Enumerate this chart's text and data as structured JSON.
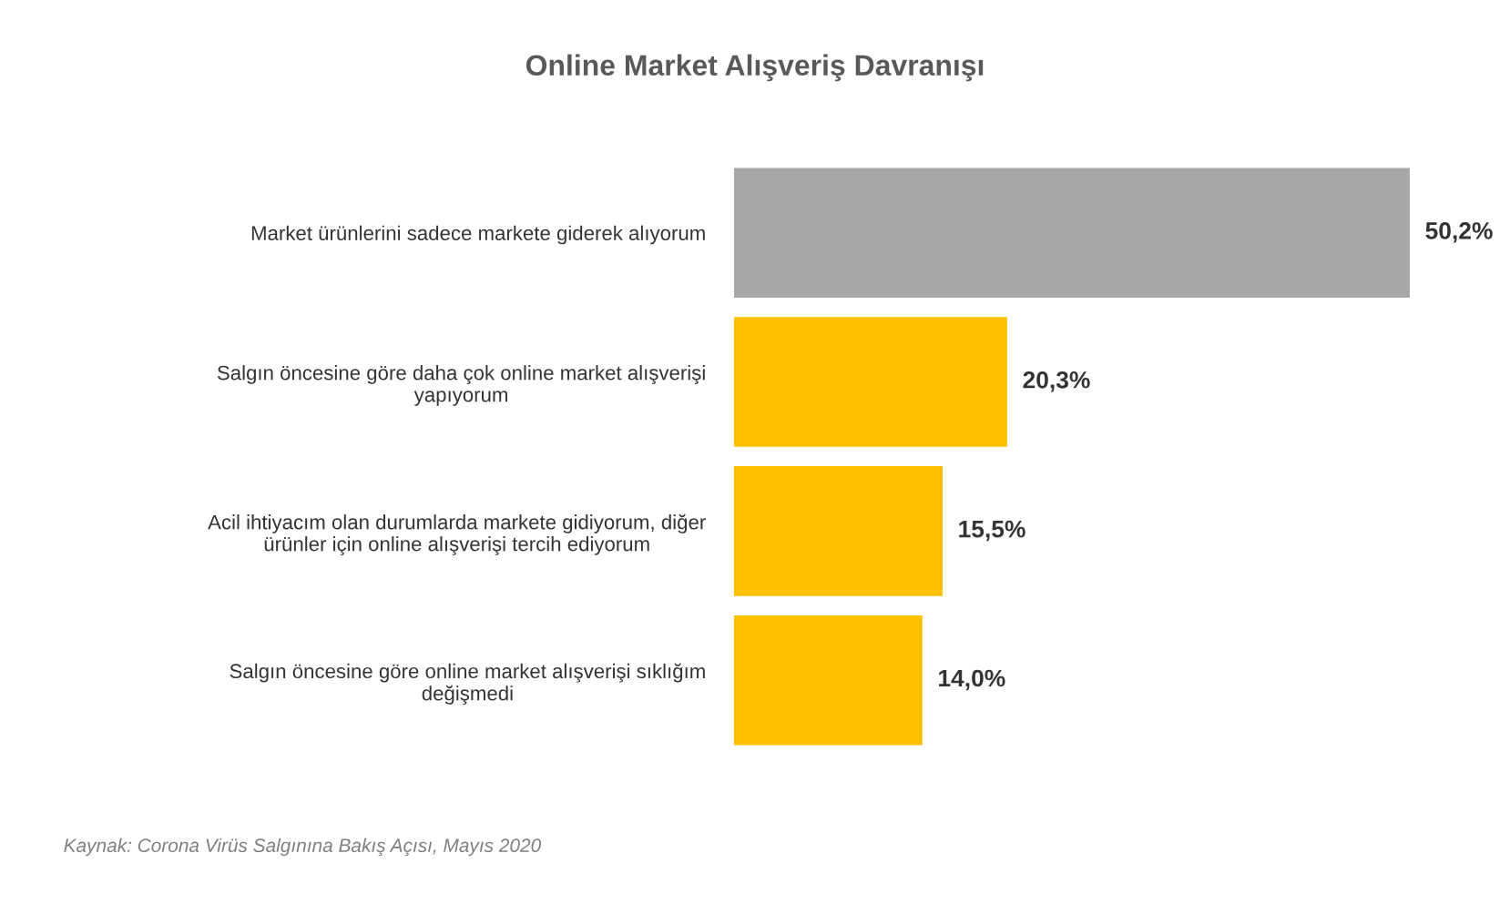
{
  "chart_data": {
    "type": "bar",
    "orientation": "horizontal",
    "title": "Online Market Alışveriş Davranışı",
    "categories": [
      "Market ürünlerini sadece markete giderek alıyorum",
      "Salgın öncesine göre daha çok online market alışverişi yapıyorum",
      "Acil ihtiyacım olan durumlarda markete gidiyorum, diğer ürünler için online alışverişi tercih ediyorum",
      "Salgın öncesine göre online market alışverişi sıklığım değişmedi"
    ],
    "values": [
      50.2,
      20.3,
      15.5,
      14.0
    ],
    "colors": [
      "#a6a6a6",
      "#ffc000",
      "#ffc000",
      "#ffc000"
    ],
    "value_labels": [
      "50,2%",
      "20,3%",
      "15,5%",
      "14,0%"
    ],
    "annotations": [
      "Kaynak: Corona Virüs Salgınına Bakış Açısı, Mayıs 2020"
    ],
    "grid": false,
    "legend": false
  }
}
